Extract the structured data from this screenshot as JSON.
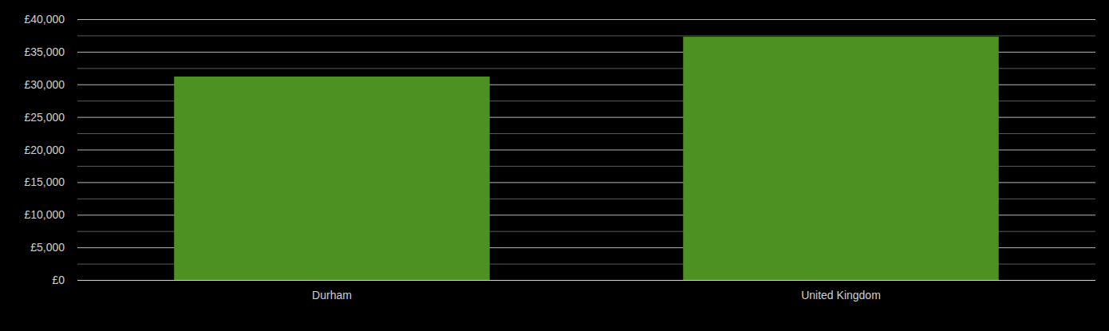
{
  "chart_data": {
    "type": "bar",
    "categories": [
      "Durham",
      "United Kingdom"
    ],
    "values": [
      31200,
      37300
    ],
    "color": "#4c9121",
    "ylim": [
      0,
      40000
    ],
    "yticks": [
      {
        "value": 0,
        "label": "£0"
      },
      {
        "value": 5000,
        "label": "£5,000"
      },
      {
        "value": 10000,
        "label": "£10,000"
      },
      {
        "value": 15000,
        "label": "£15,000"
      },
      {
        "value": 20000,
        "label": "£20,000"
      },
      {
        "value": 25000,
        "label": "£25,000"
      },
      {
        "value": 30000,
        "label": "£30,000"
      },
      {
        "value": 35000,
        "label": "£35,000"
      },
      {
        "value": 40000,
        "label": "£40,000"
      }
    ],
    "grid": true
  }
}
